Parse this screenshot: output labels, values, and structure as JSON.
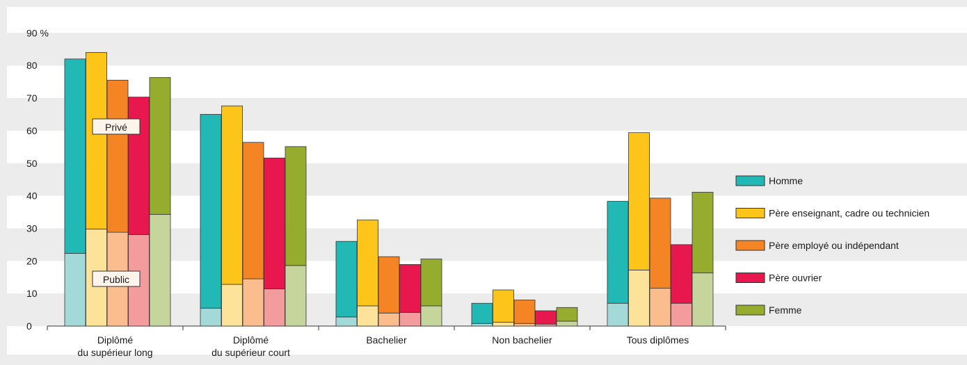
{
  "chart_data": {
    "type": "bar",
    "stacked": true,
    "grid": true,
    "legend_position": "right",
    "ylim": [
      0,
      90
    ],
    "yunit_label": "90 %",
    "yticks": [
      0,
      10,
      20,
      30,
      40,
      50,
      60,
      70,
      80
    ],
    "categories": [
      [
        "Diplômé",
        "du supérieur long"
      ],
      [
        "Diplômé",
        "du supérieur court"
      ],
      [
        "Bachelier"
      ],
      [
        "Non bachelier"
      ],
      [
        "Tous diplômes"
      ]
    ],
    "series": [
      {
        "name": "Homme",
        "color": "#22b8b6",
        "light": "#a3dad9",
        "public": [
          22.3,
          5.5,
          2.8,
          0.8,
          7.0
        ],
        "total": [
          82.0,
          65.0,
          26.0,
          7.0,
          38.3
        ]
      },
      {
        "name": "Père enseignant, cadre ou technicien",
        "color": "#fdc41a",
        "light": "#fde29a",
        "public": [
          29.8,
          12.8,
          6.2,
          1.2,
          17.2
        ],
        "total": [
          84.0,
          67.6,
          32.6,
          11.1,
          59.4
        ]
      },
      {
        "name": "Père employé ou indépendant",
        "color": "#f58424",
        "light": "#fbbc8e",
        "public": [
          28.8,
          14.5,
          4.0,
          0.8,
          11.6
        ],
        "total": [
          75.5,
          56.4,
          21.3,
          8.0,
          39.3
        ]
      },
      {
        "name": "Père ouvrier",
        "color": "#e8174d",
        "light": "#f39b9d",
        "public": [
          28.1,
          11.4,
          4.2,
          0.6,
          7.0
        ],
        "total": [
          70.3,
          51.6,
          18.9,
          4.7,
          25.0
        ]
      },
      {
        "name": "Femme",
        "color": "#96ac2e",
        "light": "#c6d59b",
        "public": [
          34.3,
          18.6,
          6.2,
          1.5,
          16.3
        ],
        "total": [
          76.3,
          55.1,
          20.6,
          5.7,
          41.1
        ]
      }
    ],
    "annotations": {
      "prive": "Privé",
      "public": "Public"
    }
  }
}
